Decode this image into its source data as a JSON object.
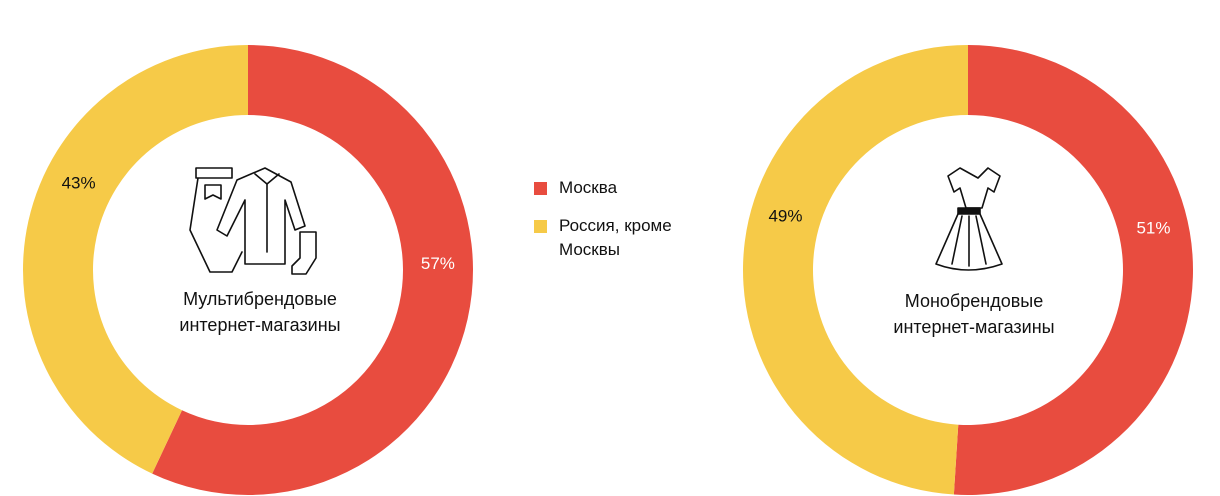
{
  "chart_data": [
    {
      "type": "donut",
      "center_label": "Мультибрендовые интернет-магазины",
      "categories": [
        "Москва",
        "Россия, кроме Москвы"
      ],
      "colors": [
        "#e84c3f",
        "#f6ca48"
      ],
      "values": [
        57,
        43
      ],
      "value_labels": [
        "57%",
        "43%"
      ]
    },
    {
      "type": "donut",
      "center_label": "Монобрендовые интернет-магазины",
      "colors": [
        "#e84c3f",
        "#f6ca48"
      ],
      "values": [
        51,
        49
      ],
      "value_labels": [
        "51%",
        "49%"
      ]
    }
  ]
}
